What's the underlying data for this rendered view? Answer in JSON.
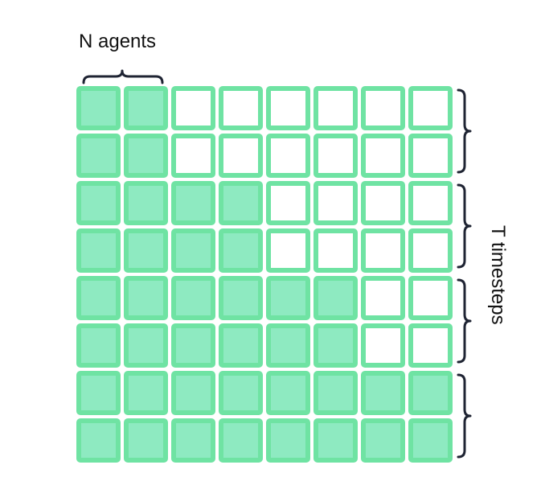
{
  "labels": {
    "agents": "N agents",
    "timesteps": "T timesteps"
  },
  "grid": {
    "rows": 8,
    "cols": 8,
    "filled_per_row": [
      2,
      2,
      4,
      4,
      6,
      6,
      8,
      8
    ],
    "timestep_group_size": 2,
    "agent_group_size": 2
  },
  "colors": {
    "cell_border": "#6fe3a3",
    "cell_fill": "#8eeac1",
    "cell_empty": "#ffffff",
    "brace": "#1f2433",
    "text": "#111111"
  }
}
